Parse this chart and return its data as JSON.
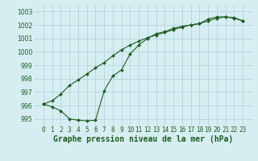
{
  "xlabel": "Graphe pression niveau de la mer (hPa)",
  "background_color": "#d6eef2",
  "grid_color": "#b8d8dd",
  "line_color": "#1e5c1e",
  "series1": {
    "x": [
      0,
      1,
      2,
      3,
      4,
      5,
      6,
      7,
      8,
      9,
      10,
      11,
      12,
      13,
      14,
      15,
      16,
      17,
      18,
      19,
      20,
      21,
      22,
      23
    ],
    "y": [
      996.1,
      995.9,
      995.6,
      995.0,
      994.9,
      994.85,
      994.9,
      997.1,
      998.2,
      998.65,
      999.85,
      1000.5,
      1001.0,
      1001.35,
      1001.5,
      1001.75,
      1001.9,
      1002.0,
      1002.1,
      1002.45,
      1002.6,
      1002.6,
      1002.5,
      1002.3
    ]
  },
  "series2": {
    "x": [
      0,
      1,
      2,
      3,
      4,
      5,
      6,
      7,
      8,
      9,
      10,
      11,
      12,
      13,
      14,
      15,
      16,
      17,
      18,
      19,
      20,
      21,
      22,
      23
    ],
    "y": [
      996.1,
      996.35,
      996.85,
      997.5,
      997.9,
      998.35,
      998.8,
      999.2,
      999.7,
      1000.15,
      1000.5,
      1000.8,
      1001.05,
      1001.25,
      1001.45,
      1001.65,
      1001.85,
      1002.0,
      1002.1,
      1002.3,
      1002.5,
      1002.6,
      1002.55,
      1002.3
    ]
  },
  "ylim": [
    994.5,
    1003.5
  ],
  "yticks": [
    995,
    996,
    997,
    998,
    999,
    1000,
    1001,
    1002,
    1003
  ],
  "xticks": [
    0,
    1,
    2,
    3,
    4,
    5,
    6,
    7,
    8,
    9,
    10,
    11,
    12,
    13,
    14,
    15,
    16,
    17,
    18,
    19,
    20,
    21,
    22,
    23
  ],
  "tick_fontsize": 5.5,
  "xlabel_fontsize": 7,
  "marker": "D",
  "marker_size": 2.0,
  "line_width": 0.8
}
